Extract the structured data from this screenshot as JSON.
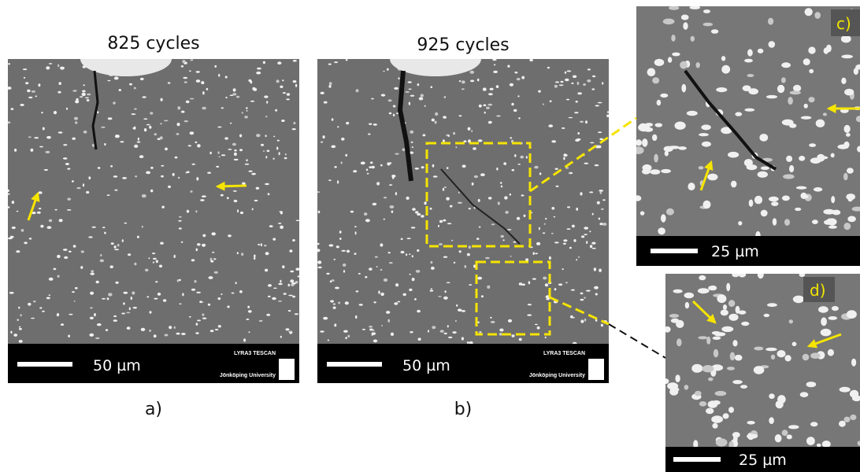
{
  "panels": [
    {
      "title": "825 cycles",
      "scale_bar": "50 µm",
      "brand": "LYRA3 TESCAN",
      "institution": "Jönköping University",
      "label": "a)"
    },
    {
      "title": "925 cycles",
      "scale_bar": "50 µm",
      "brand": "LYRA3 TESCAN",
      "institution": "Jönköping University",
      "label": "b)"
    },
    {
      "label": "c)",
      "scale_bar": "25 µm"
    },
    {
      "label": "d)",
      "scale_bar": "25 µm"
    }
  ]
}
